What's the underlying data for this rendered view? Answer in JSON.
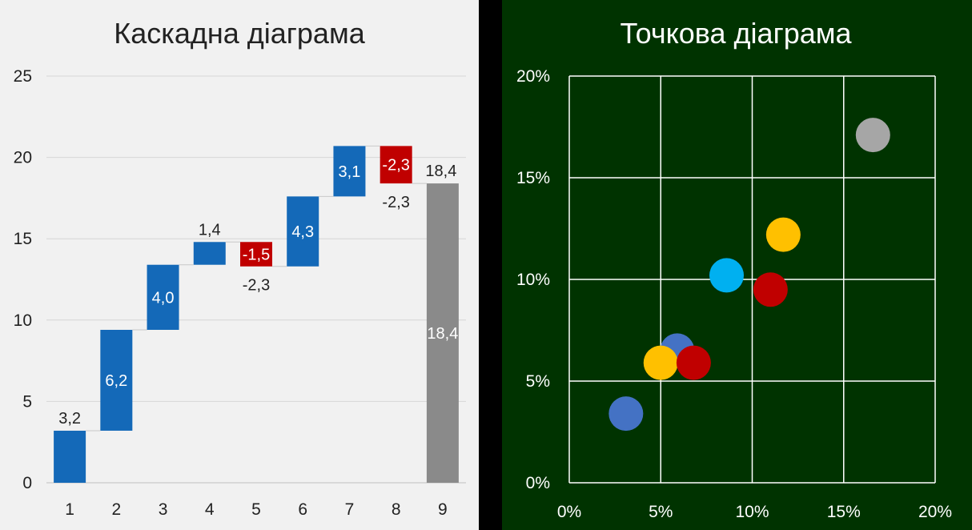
{
  "chart_data": [
    {
      "type": "waterfall",
      "title": "Каскадна діаграма",
      "categories": [
        "1",
        "2",
        "3",
        "4",
        "5",
        "6",
        "7",
        "8",
        "9"
      ],
      "values": [
        3.2,
        6.2,
        4.0,
        1.4,
        -1.5,
        4.3,
        3.1,
        -2.3,
        18.4
      ],
      "labels": [
        "3,2",
        "6,2",
        "4,0",
        "1,4",
        "-1,5",
        "4,3",
        "3,1",
        "-2,3",
        "18,4"
      ],
      "total_index": 8,
      "total_value_label": "18,4",
      "decrease_outer_label": "-2,3",
      "ylim": [
        0,
        25
      ],
      "yticks": [
        0,
        5,
        10,
        15,
        20,
        25
      ],
      "ytick_labels": [
        "0",
        "5",
        "10",
        "15",
        "20",
        "25"
      ],
      "grid": true,
      "colors": {
        "increase": "#1469b8",
        "decrease": "#c00000",
        "total": "#8a8a8a",
        "background": "#f1f1f1"
      }
    },
    {
      "type": "scatter",
      "title": "Точкова діаграма",
      "xlim": [
        0,
        20
      ],
      "ylim": [
        0,
        20
      ],
      "xticks": [
        0,
        5,
        10,
        15,
        20
      ],
      "yticks": [
        0,
        5,
        10,
        15,
        20
      ],
      "xtick_labels": [
        "0%",
        "5%",
        "10%",
        "15%",
        "20%"
      ],
      "ytick_labels": [
        "0%",
        "5%",
        "10%",
        "15%",
        "20%"
      ],
      "grid": true,
      "points": [
        {
          "x": 3.1,
          "y": 3.4,
          "color": "#4472c4"
        },
        {
          "x": 5.9,
          "y": 6.5,
          "color": "#4472c4"
        },
        {
          "x": 5.0,
          "y": 5.9,
          "color": "#ffc000"
        },
        {
          "x": 6.8,
          "y": 5.9,
          "color": "#c00000"
        },
        {
          "x": 8.6,
          "y": 10.2,
          "color": "#00b0f0"
        },
        {
          "x": 11.0,
          "y": 9.5,
          "color": "#c00000"
        },
        {
          "x": 11.7,
          "y": 12.2,
          "color": "#ffc000"
        },
        {
          "x": 16.6,
          "y": 17.1,
          "color": "#a6a6a6"
        }
      ],
      "colors": {
        "background": "#003300",
        "grid": "#ffffff",
        "text": "#ffffff"
      }
    }
  ]
}
